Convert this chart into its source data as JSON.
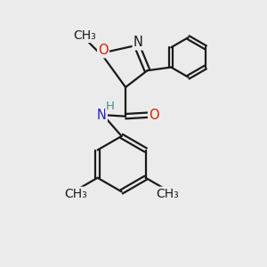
{
  "bg_color": "#ebebeb",
  "bond_color": "#1a1a1a",
  "N_color": "#2222bb",
  "O_color": "#cc2200",
  "H_color": "#4d8888",
  "line_width": 1.6,
  "font_size": 10.5,
  "fig_size": [
    3.0,
    3.0
  ],
  "dpi": 100,
  "xlim": [
    0,
    10
  ],
  "ylim": [
    0,
    10
  ]
}
